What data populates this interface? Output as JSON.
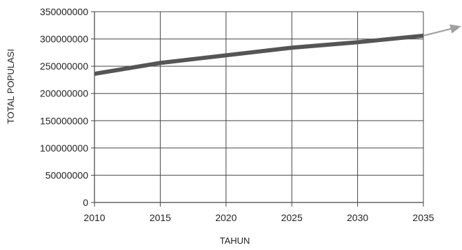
{
  "chart_data": {
    "type": "line",
    "xlabel": "TAHUN",
    "ylabel": "TOTAL POPULASI",
    "x": [
      2010,
      2015,
      2020,
      2025,
      2030,
      2035
    ],
    "series": [
      {
        "values": [
          236000000,
          256000000,
          270000000,
          284000000,
          294000000,
          306000000
        ]
      }
    ],
    "xlim": [
      2010,
      2035
    ],
    "ylim": [
      0,
      350000000
    ],
    "x_tick_labels": [
      "2010",
      "2015",
      "2020",
      "2025",
      "2030",
      "2035"
    ],
    "y_tick_labels": [
      "0",
      "50000000",
      "100000000",
      "150000000",
      "200000000",
      "250000000",
      "300000000",
      "350000000"
    ],
    "grid": true,
    "trend_arrow": true,
    "colors": {
      "line": "#555555",
      "arrow": "#a0a0a0",
      "grid": "#444444",
      "axis": "#444444"
    }
  }
}
